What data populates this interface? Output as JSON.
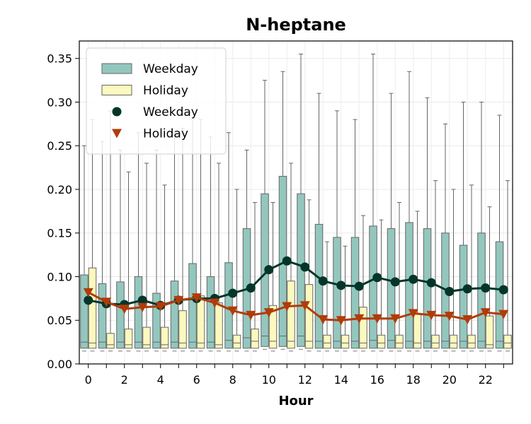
{
  "chart_data": {
    "type": "box",
    "title": "N-heptane",
    "xlabel": "Hour",
    "ylabel": "",
    "xlim": [
      -0.5,
      23.5
    ],
    "ylim": [
      0,
      0.37
    ],
    "x_ticks": [
      0,
      2,
      4,
      6,
      8,
      10,
      12,
      14,
      16,
      18,
      20,
      22
    ],
    "y_ticks": [
      0.0,
      0.05,
      0.1,
      0.15,
      0.2,
      0.25,
      0.3,
      0.35
    ],
    "y_tick_labels": [
      "0.00",
      "0.05",
      "0.10",
      "0.15",
      "0.20",
      "0.25",
      "0.30",
      "0.35"
    ],
    "grid": true,
    "legend_position": "upper-left",
    "legend": [
      {
        "label": "Weekday",
        "kind": "patch",
        "color": "#93c7be"
      },
      {
        "label": "Holiday",
        "kind": "patch",
        "color": "#fbf9be"
      },
      {
        "label": "Weekday",
        "kind": "circle",
        "color": "#04352a"
      },
      {
        "label": "Holiday",
        "kind": "triangle-down",
        "color": "#b23b08"
      }
    ],
    "hours": [
      0,
      1,
      2,
      3,
      4,
      5,
      6,
      7,
      8,
      9,
      10,
      11,
      12,
      13,
      14,
      15,
      16,
      17,
      18,
      19,
      20,
      21,
      22,
      23
    ],
    "box_series": [
      {
        "name": "Weekday",
        "color": "#93c7be",
        "q1": [
          0.018,
          0.018,
          0.018,
          0.018,
          0.018,
          0.018,
          0.018,
          0.018,
          0.018,
          0.018,
          0.02,
          0.02,
          0.02,
          0.018,
          0.018,
          0.018,
          0.018,
          0.018,
          0.018,
          0.018,
          0.018,
          0.018,
          0.018,
          0.018
        ],
        "median": [
          0.025,
          0.025,
          0.025,
          0.025,
          0.025,
          0.025,
          0.025,
          0.025,
          0.027,
          0.03,
          0.032,
          0.032,
          0.032,
          0.026,
          0.026,
          0.026,
          0.027,
          0.027,
          0.026,
          0.026,
          0.026,
          0.026,
          0.026,
          0.026
        ],
        "q3": [
          0.102,
          0.092,
          0.094,
          0.1,
          0.081,
          0.095,
          0.115,
          0.1,
          0.116,
          0.155,
          0.195,
          0.215,
          0.195,
          0.16,
          0.145,
          0.145,
          0.158,
          0.155,
          0.162,
          0.155,
          0.15,
          0.136,
          0.15,
          0.14
        ],
        "whisker_high": [
          0.25,
          0.255,
          0.245,
          0.265,
          0.245,
          0.265,
          0.28,
          0.26,
          0.265,
          0.245,
          0.325,
          0.335,
          0.355,
          0.31,
          0.29,
          0.28,
          0.355,
          0.31,
          0.335,
          0.305,
          0.275,
          0.3,
          0.3,
          0.285
        ]
      },
      {
        "name": "Holiday",
        "color": "#fbf9be",
        "q1": [
          0.018,
          0.018,
          0.018,
          0.018,
          0.018,
          0.018,
          0.018,
          0.018,
          0.018,
          0.018,
          0.018,
          0.018,
          0.018,
          0.018,
          0.018,
          0.018,
          0.018,
          0.018,
          0.018,
          0.018,
          0.018,
          0.018,
          0.018,
          0.018
        ],
        "median": [
          0.024,
          0.022,
          0.022,
          0.022,
          0.022,
          0.024,
          0.024,
          0.022,
          0.024,
          0.026,
          0.026,
          0.026,
          0.026,
          0.024,
          0.024,
          0.024,
          0.024,
          0.024,
          0.024,
          0.024,
          0.024,
          0.024,
          0.022,
          0.024
        ],
        "q3": [
          0.11,
          0.035,
          0.04,
          0.042,
          0.042,
          0.061,
          0.078,
          0.07,
          0.033,
          0.04,
          0.067,
          0.095,
          0.091,
          0.033,
          0.033,
          0.065,
          0.033,
          0.033,
          0.058,
          0.033,
          0.033,
          0.033,
          0.055,
          0.033
        ],
        "whisker_high": [
          0.28,
          0.29,
          0.22,
          0.23,
          0.205,
          0.27,
          0.28,
          0.23,
          0.2,
          0.185,
          0.185,
          0.23,
          0.188,
          0.14,
          0.135,
          0.17,
          0.165,
          0.185,
          0.175,
          0.21,
          0.2,
          0.205,
          0.18,
          0.21
        ]
      }
    ],
    "line_series": [
      {
        "name": "Weekday",
        "marker": "circle",
        "color": "#04352a",
        "values": [
          0.073,
          0.069,
          0.068,
          0.073,
          0.067,
          0.073,
          0.075,
          0.075,
          0.081,
          0.087,
          0.108,
          0.118,
          0.111,
          0.095,
          0.09,
          0.089,
          0.099,
          0.094,
          0.097,
          0.093,
          0.083,
          0.086,
          0.087,
          0.085
        ]
      },
      {
        "name": "Holiday",
        "marker": "triangle-down",
        "color": "#b23b08",
        "values": [
          0.082,
          0.071,
          0.063,
          0.065,
          0.066,
          0.073,
          0.076,
          0.07,
          0.061,
          0.056,
          0.059,
          0.066,
          0.067,
          0.051,
          0.05,
          0.052,
          0.052,
          0.052,
          0.058,
          0.056,
          0.055,
          0.051,
          0.059,
          0.057
        ]
      }
    ]
  }
}
